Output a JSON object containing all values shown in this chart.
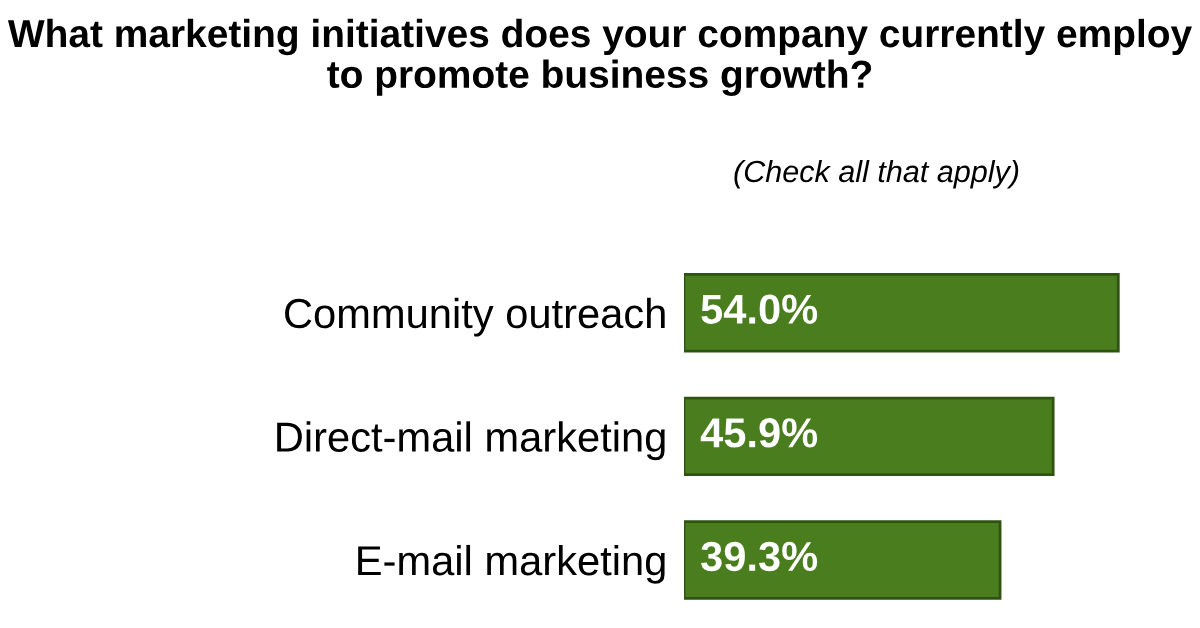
{
  "chart_data": {
    "type": "bar",
    "orientation": "horizontal",
    "title": "What marketing initiatives does your company currently employ to promote business growth?",
    "subtitle": "(Check all that apply)",
    "categories": [
      "Community outreach",
      "Direct-mail marketing",
      "E-mail marketing"
    ],
    "values": [
      54.0,
      45.9,
      39.3
    ],
    "value_labels": [
      "54.0%",
      "45.9%",
      "39.3%"
    ],
    "color": "#4a7d1e"
  }
}
